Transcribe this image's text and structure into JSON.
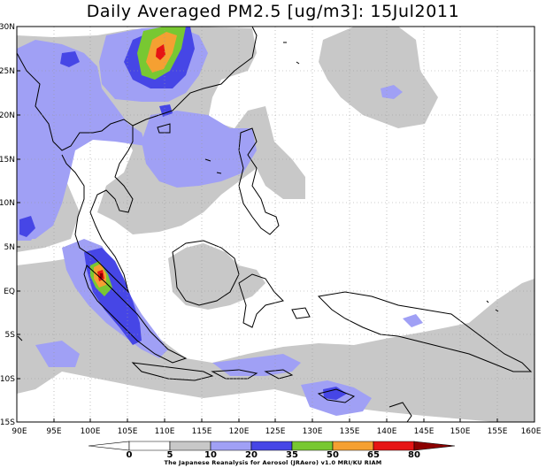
{
  "title": "Daily Averaged PM2.5 [ug/m3]: 15Jul2011",
  "lat_labels": [
    "30N",
    "25N",
    "20N",
    "15N",
    "10N",
    "5N",
    "EQ",
    "5S",
    "10S",
    "15S"
  ],
  "lon_labels": [
    "90E",
    "95E",
    "100E",
    "105E",
    "110E",
    "115E",
    "120E",
    "125E",
    "130E",
    "135E",
    "140E",
    "145E",
    "150E",
    "155E",
    "160E"
  ],
  "colorbar": {
    "levels": [
      "0",
      "5",
      "10",
      "20",
      "35",
      "50",
      "65",
      "80"
    ],
    "colors": [
      "#ffffff",
      "#ffffff",
      "#c8c8c8",
      "#a0a0f5",
      "#4646e6",
      "#78c832",
      "#f5a032",
      "#e61414",
      "#8c0000"
    ]
  },
  "credit": "The Japanese Reanalysis for Aerosol (JRAero) v1.0 MRI/KU RIAM"
}
